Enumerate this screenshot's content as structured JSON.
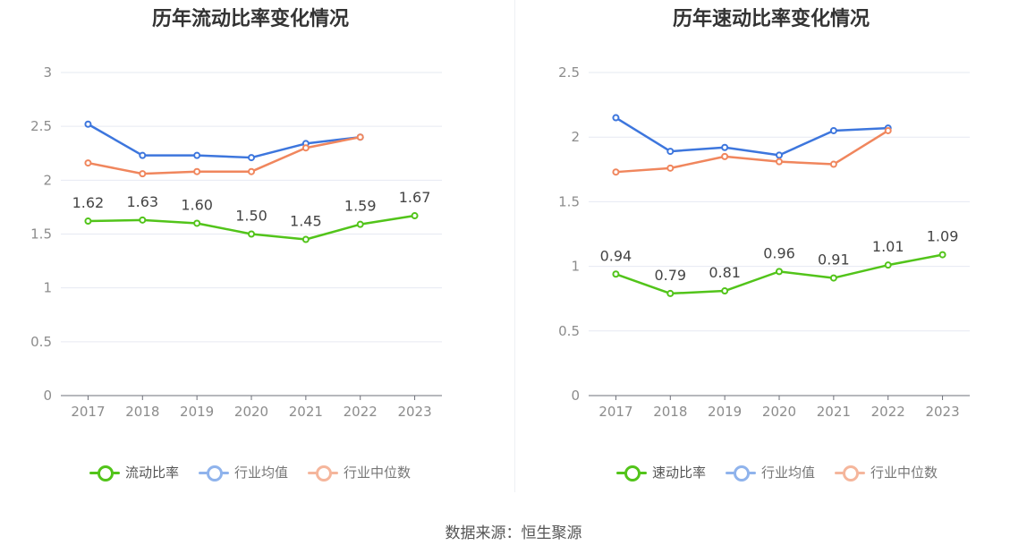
{
  "source_text": "数据来源：恒生聚源",
  "charts": [
    {
      "title": "历年流动比率变化情况",
      "legend": [
        {
          "label": "流动比率",
          "color": "#52c41a",
          "dim": false
        },
        {
          "label": "行业均值",
          "color": "#8fb3ec",
          "dim": true
        },
        {
          "label": "行业中位数",
          "color": "#f5b69c",
          "dim": true
        }
      ]
    },
    {
      "title": "历年速动比率变化情况",
      "legend": [
        {
          "label": "速动比率",
          "color": "#52c41a",
          "dim": false
        },
        {
          "label": "行业均值",
          "color": "#8fb3ec",
          "dim": true
        },
        {
          "label": "行业中位数",
          "color": "#f5b69c",
          "dim": true
        }
      ]
    }
  ],
  "chart_data": [
    {
      "type": "line",
      "title": "历年流动比率变化情况",
      "categories": [
        "2017",
        "2018",
        "2019",
        "2020",
        "2021",
        "2022",
        "2023"
      ],
      "ylim": [
        0,
        3
      ],
      "yticks": [
        "0",
        "0.5",
        "1",
        "1.5",
        "2",
        "2.5",
        "3"
      ],
      "grid": true,
      "legend_position": "bottom",
      "series": [
        {
          "name": "流动比率",
          "color": "#52c41a",
          "labels": true,
          "values": [
            1.62,
            1.63,
            1.6,
            1.5,
            1.45,
            1.59,
            1.67
          ],
          "value_labels": [
            "1.62",
            "1.63",
            "1.60",
            "1.50",
            "1.45",
            "1.59",
            "1.67"
          ]
        },
        {
          "name": "行业均值",
          "color": "#3d76dd",
          "labels": false,
          "values": [
            2.52,
            2.23,
            2.23,
            2.21,
            2.34,
            2.4,
            null
          ]
        },
        {
          "name": "行业中位数",
          "color": "#f0865d",
          "labels": false,
          "values": [
            2.16,
            2.06,
            2.08,
            2.08,
            2.3,
            2.4,
            null
          ]
        }
      ]
    },
    {
      "type": "line",
      "title": "历年速动比率变化情况",
      "categories": [
        "2017",
        "2018",
        "2019",
        "2020",
        "2021",
        "2022",
        "2023"
      ],
      "ylim": [
        0,
        2.5
      ],
      "yticks": [
        "0",
        "0.5",
        "1",
        "1.5",
        "2",
        "2.5"
      ],
      "grid": true,
      "legend_position": "bottom",
      "series": [
        {
          "name": "速动比率",
          "color": "#52c41a",
          "labels": true,
          "values": [
            0.94,
            0.79,
            0.81,
            0.96,
            0.91,
            1.01,
            1.09
          ],
          "value_labels": [
            "0.94",
            "0.79",
            "0.81",
            "0.96",
            "0.91",
            "1.01",
            "1.09"
          ]
        },
        {
          "name": "行业均值",
          "color": "#3d76dd",
          "labels": false,
          "values": [
            2.15,
            1.89,
            1.92,
            1.86,
            2.05,
            2.07,
            null
          ]
        },
        {
          "name": "行业中位数",
          "color": "#f0865d",
          "labels": false,
          "values": [
            1.73,
            1.76,
            1.85,
            1.81,
            1.79,
            2.05,
            null
          ]
        }
      ]
    }
  ]
}
